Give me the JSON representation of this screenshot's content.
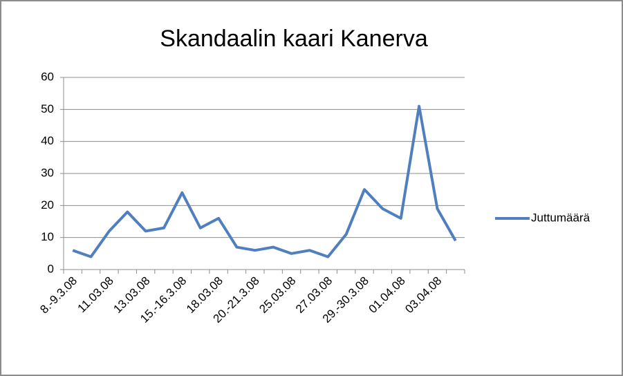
{
  "chart_data": {
    "type": "line",
    "title": "Skandaalin kaari Kanerva",
    "categories": [
      "8.-9.3.08",
      null,
      "11.03.08",
      null,
      "13.03.08",
      null,
      "15.-16.3.08",
      null,
      "18.03.08",
      null,
      "20.-21.3.08",
      null,
      "25.03.08",
      null,
      "27.03.08",
      null,
      "29.-30.3.08",
      null,
      "01.04.08",
      null,
      "03.04.08",
      null
    ],
    "series": [
      {
        "name": "Juttumäärä",
        "color": "#4f7fbf",
        "values": [
          6,
          4,
          12,
          18,
          12,
          13,
          24,
          13,
          16,
          7,
          6,
          7,
          5,
          6,
          4,
          11,
          25,
          19,
          16,
          51,
          19,
          9
        ]
      }
    ],
    "ylim": [
      0,
      60
    ],
    "yticks": [
      0,
      10,
      20,
      30,
      40,
      50,
      60
    ],
    "grid": true,
    "legend": "right"
  }
}
